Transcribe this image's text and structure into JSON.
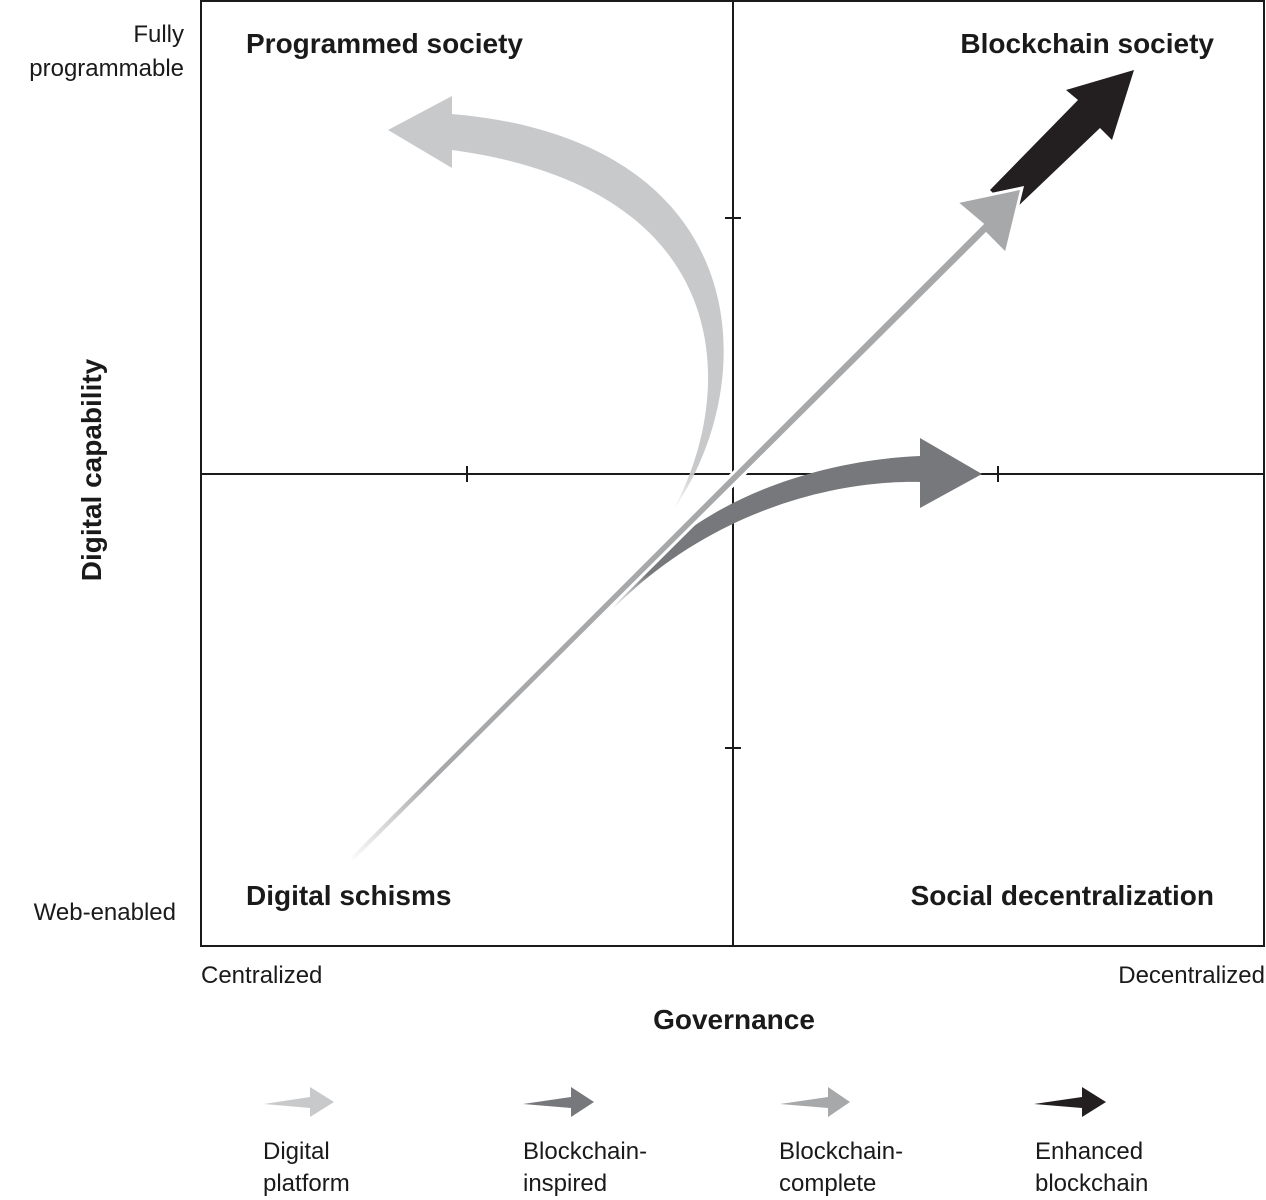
{
  "axes": {
    "x_title": "Governance",
    "x_left": "Centralized",
    "x_right": "Decentralized",
    "y_title": "Digital capability",
    "y_top": "Fully\nprogrammable",
    "y_bottom": "Web-enabled"
  },
  "quadrants": {
    "top_left": "Programmed society",
    "top_right": "Blockchain society",
    "bottom_left": "Digital schisms",
    "bottom_right": "Social decentralization"
  },
  "legend": [
    {
      "line1": "Digital",
      "line2": "platform",
      "color": "#c8c9cb"
    },
    {
      "line1": "Blockchain-",
      "line2": "inspired",
      "color": "#77787b"
    },
    {
      "line1": "Blockchain-",
      "line2": "complete",
      "color": "#a7a8aa"
    },
    {
      "line1": "Enhanced",
      "line2": "blockchain",
      "color": "#231f20"
    }
  ],
  "colors": {
    "digital_platform": "#c8c9cb",
    "blockchain_inspired": "#77787b",
    "blockchain_complete": "#a7a8aa",
    "enhanced_blockchain": "#231f20",
    "frame": "#1a1a1a"
  }
}
